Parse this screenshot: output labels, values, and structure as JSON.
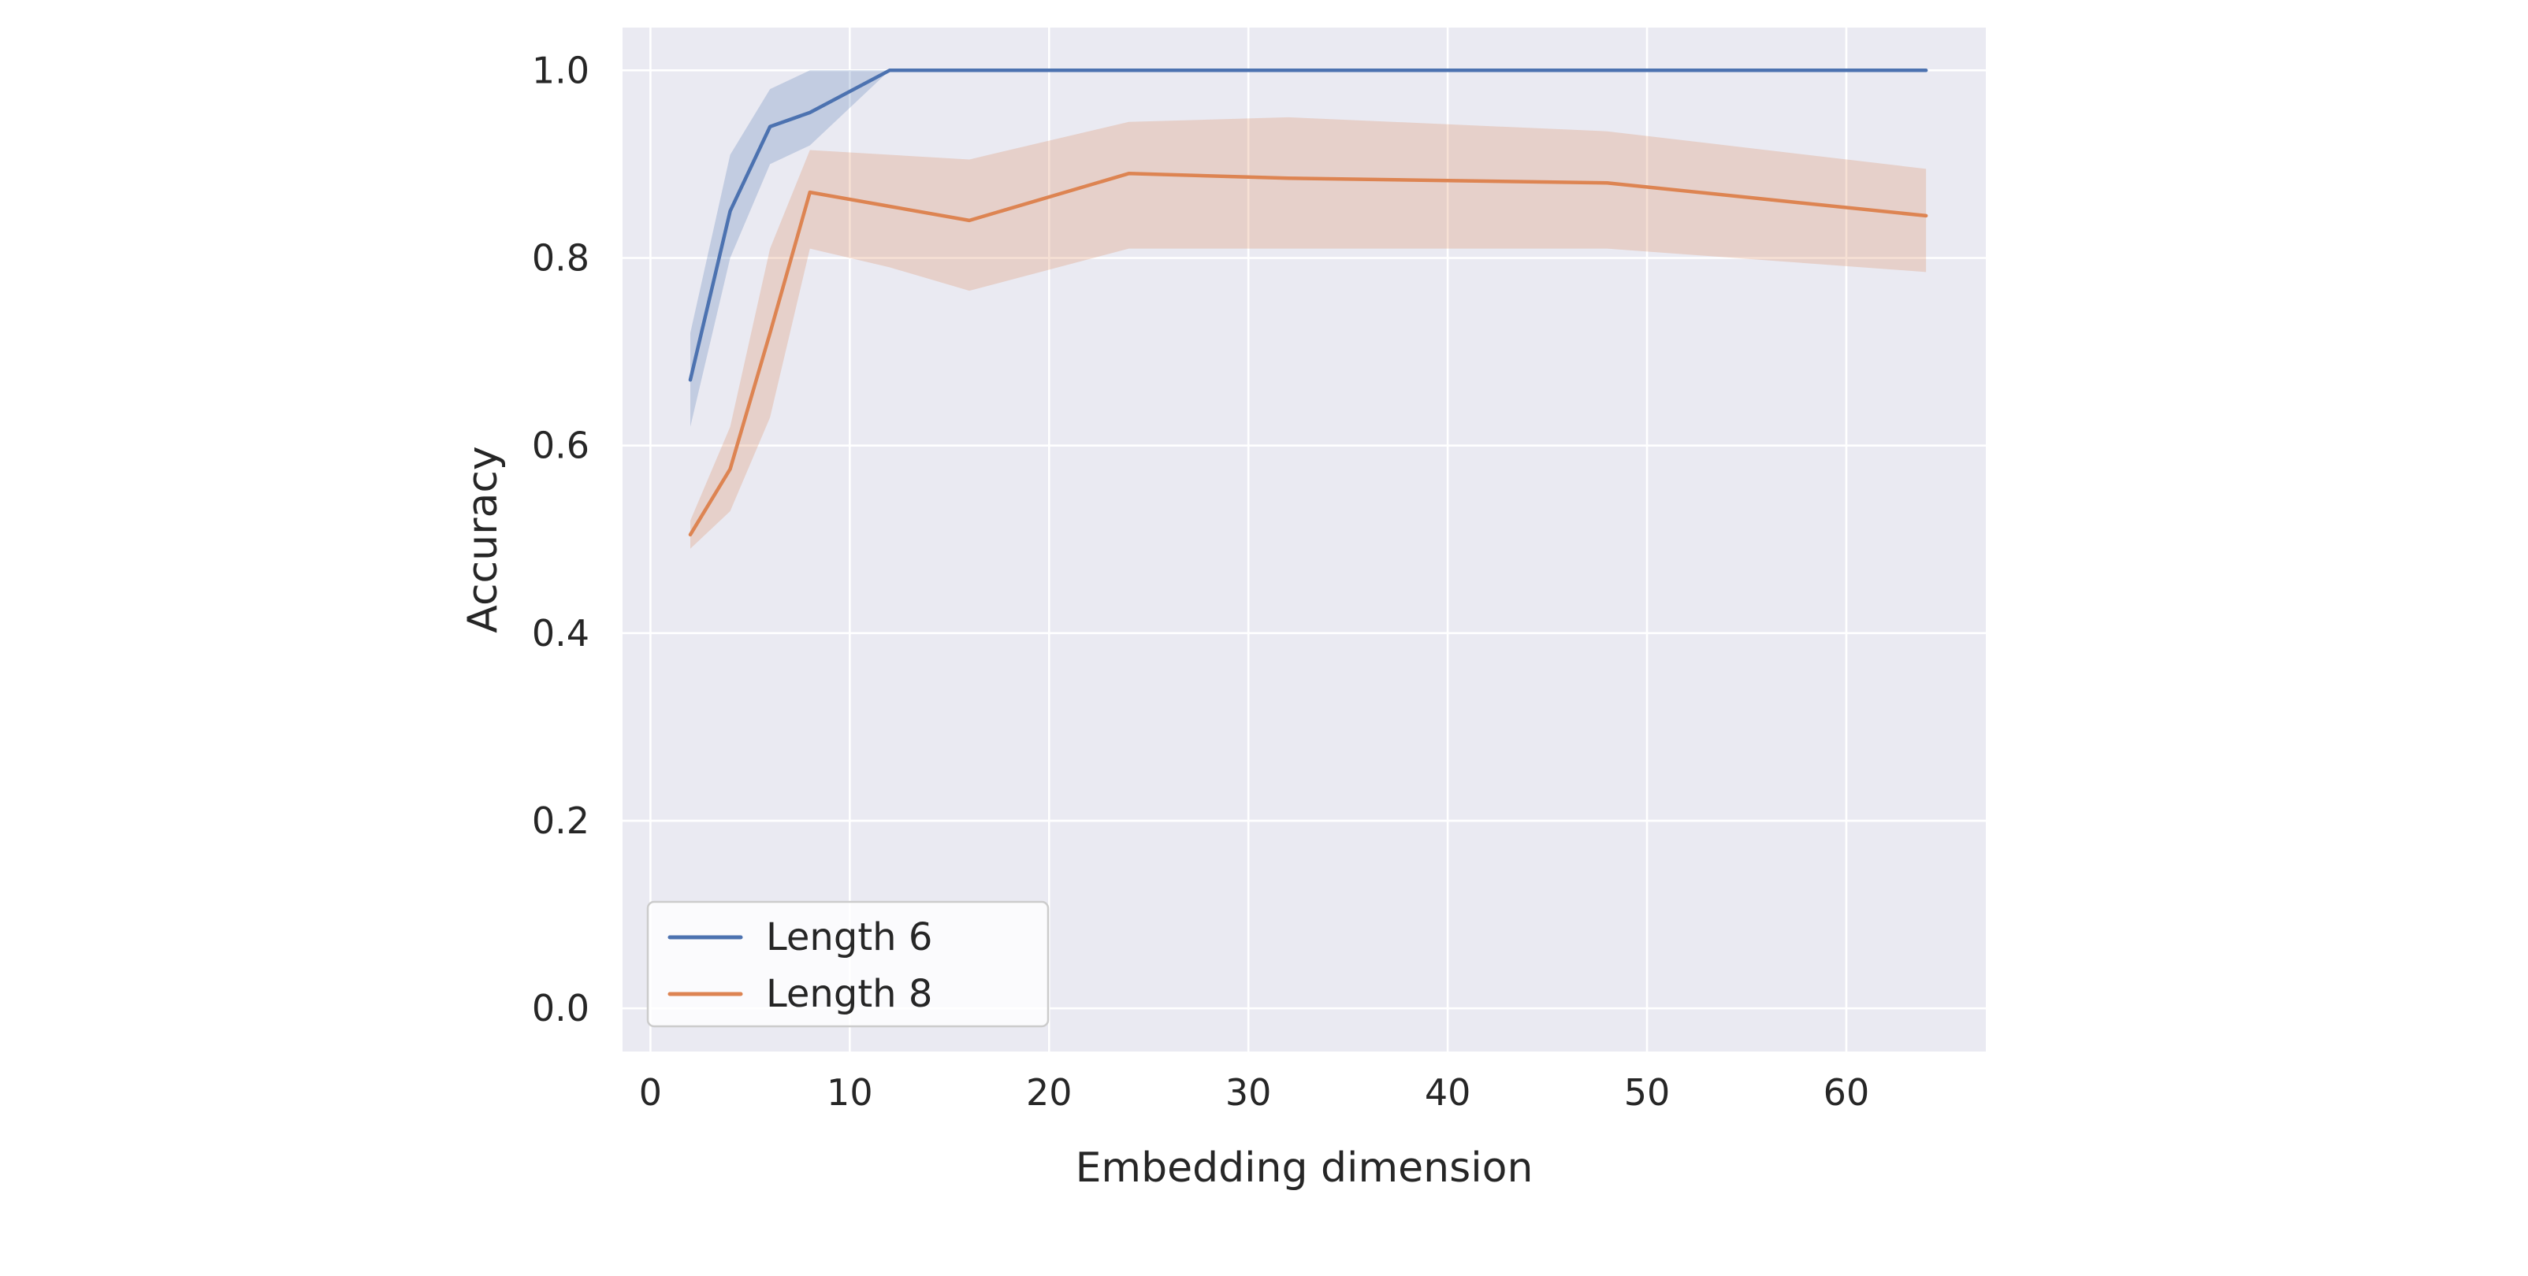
{
  "figure": {
    "background": "#ffffff",
    "plot_background": "#eaeaf2",
    "grid_color": "#ffffff",
    "text_color": "#262626"
  },
  "chart_data": {
    "type": "line",
    "title": "",
    "xlabel": "Embedding dimension",
    "ylabel": "Accuracy",
    "x": [
      2,
      4,
      6,
      8,
      12,
      16,
      24,
      32,
      48,
      64
    ],
    "series": [
      {
        "name": "Length 6",
        "color": "#4c72b0",
        "values": [
          0.67,
          0.85,
          0.94,
          0.955,
          1.0,
          1.0,
          1.0,
          1.0,
          1.0,
          1.0
        ],
        "band_lower": [
          0.62,
          0.8,
          0.9,
          0.92,
          1.0,
          1.0,
          1.0,
          1.0,
          1.0,
          1.0
        ],
        "band_upper": [
          0.72,
          0.91,
          0.98,
          1.0,
          1.0,
          1.0,
          1.0,
          1.0,
          1.0,
          1.0
        ]
      },
      {
        "name": "Length 8",
        "color": "#dd8452",
        "values": [
          0.505,
          0.575,
          0.72,
          0.87,
          0.855,
          0.84,
          0.89,
          0.885,
          0.88,
          0.845
        ],
        "band_lower": [
          0.49,
          0.53,
          0.63,
          0.81,
          0.79,
          0.765,
          0.81,
          0.81,
          0.81,
          0.785
        ],
        "band_upper": [
          0.52,
          0.62,
          0.81,
          0.915,
          0.91,
          0.905,
          0.945,
          0.95,
          0.935,
          0.895
        ]
      }
    ],
    "xticks": [
      0,
      10,
      20,
      30,
      40,
      50,
      60
    ],
    "yticks": [
      0.0,
      0.2,
      0.4,
      0.6,
      0.8,
      1.0
    ],
    "xlim": [
      -1.4,
      67
    ],
    "ylim": [
      -0.046,
      1.0456
    ],
    "grid": true,
    "band_alpha": 0.25,
    "legend_position": "lower left",
    "legend": {
      "entries": [
        "Length 6",
        "Length 8"
      ],
      "background": "#ffffff",
      "border_color": "#cccccc"
    }
  }
}
